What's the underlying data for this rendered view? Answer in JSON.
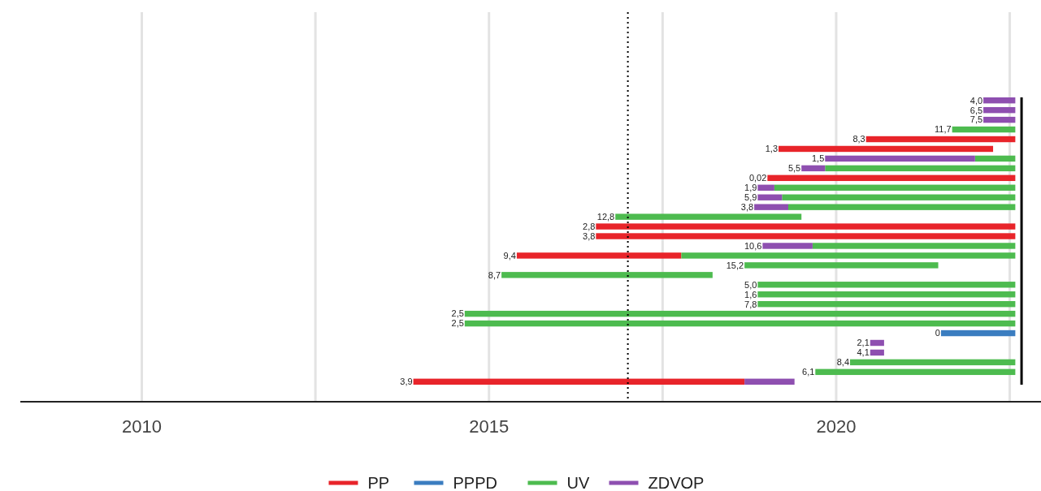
{
  "chart_data": {
    "type": "bar",
    "orientation": "horizontal",
    "categories": [
      "4,0",
      "6,5",
      "7,5",
      "11,7",
      "8,3",
      "1,3",
      "1,5",
      "5,5",
      "0,02",
      "1,9",
      "5,9",
      "3,8",
      "12,8",
      "2,8",
      "3,8",
      "10,6",
      "9,4",
      "15,2",
      "8,7",
      "5,0",
      "1,6",
      "7,8",
      "2,5",
      "2,5",
      "0",
      "2,1",
      "4,1",
      "8,4",
      "6,1",
      "3,9"
    ],
    "series": [
      {
        "name": "PP",
        "color": "#e8242a",
        "base": [
          null,
          null,
          null,
          null,
          2020.43,
          2019.17,
          null,
          null,
          2019.01,
          null,
          null,
          null,
          null,
          2016.54,
          2016.54,
          null,
          2015.4,
          null,
          null,
          null,
          null,
          null,
          null,
          null,
          null,
          null,
          null,
          null,
          null,
          2013.91
        ],
        "values": [
          null,
          null,
          null,
          null,
          2.15,
          3.09,
          null,
          null,
          3.57,
          null,
          null,
          null,
          null,
          6.04,
          6.04,
          null,
          2.37,
          null,
          null,
          null,
          null,
          null,
          null,
          null,
          null,
          null,
          null,
          null,
          null,
          4.77
        ]
      },
      {
        "name": "PPPD",
        "color": "#3b7dc0",
        "base": [
          null,
          null,
          null,
          null,
          null,
          null,
          null,
          null,
          null,
          null,
          null,
          null,
          null,
          null,
          null,
          null,
          null,
          null,
          null,
          null,
          null,
          null,
          null,
          null,
          2021.51,
          null,
          null,
          null,
          null,
          null
        ],
        "values": [
          null,
          null,
          null,
          null,
          null,
          null,
          null,
          null,
          null,
          null,
          null,
          null,
          null,
          null,
          null,
          null,
          null,
          null,
          null,
          null,
          null,
          null,
          null,
          null,
          1.07,
          null,
          null,
          null,
          null,
          null
        ]
      },
      {
        "name": "UV",
        "color": "#4dbb4f",
        "base": [
          null,
          null,
          null,
          2021.67,
          null,
          null,
          2022.0,
          2019.84,
          null,
          2019.11,
          2019.22,
          2019.31,
          2016.82,
          null,
          null,
          2019.66,
          2017.77,
          2018.68,
          2015.18,
          2018.87,
          2018.87,
          2018.87,
          2014.65,
          2014.65,
          null,
          null,
          null,
          2020.2,
          2019.7,
          null
        ],
        "values": [
          null,
          null,
          null,
          0.91,
          null,
          null,
          0.58,
          2.74,
          null,
          3.47,
          3.36,
          3.27,
          2.68,
          null,
          null,
          2.92,
          4.81,
          2.79,
          3.04,
          3.71,
          3.71,
          3.71,
          7.93,
          7.93,
          null,
          null,
          null,
          2.38,
          2.88,
          null
        ]
      },
      {
        "name": "ZDVOP",
        "color": "#8e4fb0",
        "base": [
          2022.12,
          2022.12,
          2022.12,
          null,
          null,
          null,
          2019.84,
          2019.5,
          null,
          2018.87,
          2018.87,
          2018.82,
          null,
          null,
          null,
          2018.94,
          null,
          null,
          null,
          null,
          null,
          null,
          null,
          null,
          null,
          2020.49,
          2020.49,
          null,
          null,
          2018.68
        ],
        "values": [
          0.46,
          0.46,
          0.46,
          null,
          null,
          null,
          2.16,
          0.34,
          null,
          0.24,
          0.35,
          0.49,
          null,
          null,
          null,
          0.72,
          null,
          null,
          null,
          null,
          null,
          null,
          null,
          null,
          null,
          0.2,
          0.2,
          null,
          null,
          0.72
        ]
      }
    ],
    "xlim": [
      2008.25,
      2022.95
    ],
    "xticks": [
      2010,
      {
        "value": 2012.5,
        "label": null
      },
      2015,
      {
        "value": 2017.5,
        "label": null
      },
      2020,
      {
        "value": 2022.5,
        "label": null
      }
    ],
    "grid": "x",
    "legend": "bottom",
    "ref_lines": [
      {
        "axis": "x",
        "value": 2017.0,
        "color": "#000000",
        "line_style": "dotted"
      },
      {
        "axis": "x",
        "value": 2022.67,
        "color": "#000000",
        "line_style": "solid"
      }
    ]
  }
}
